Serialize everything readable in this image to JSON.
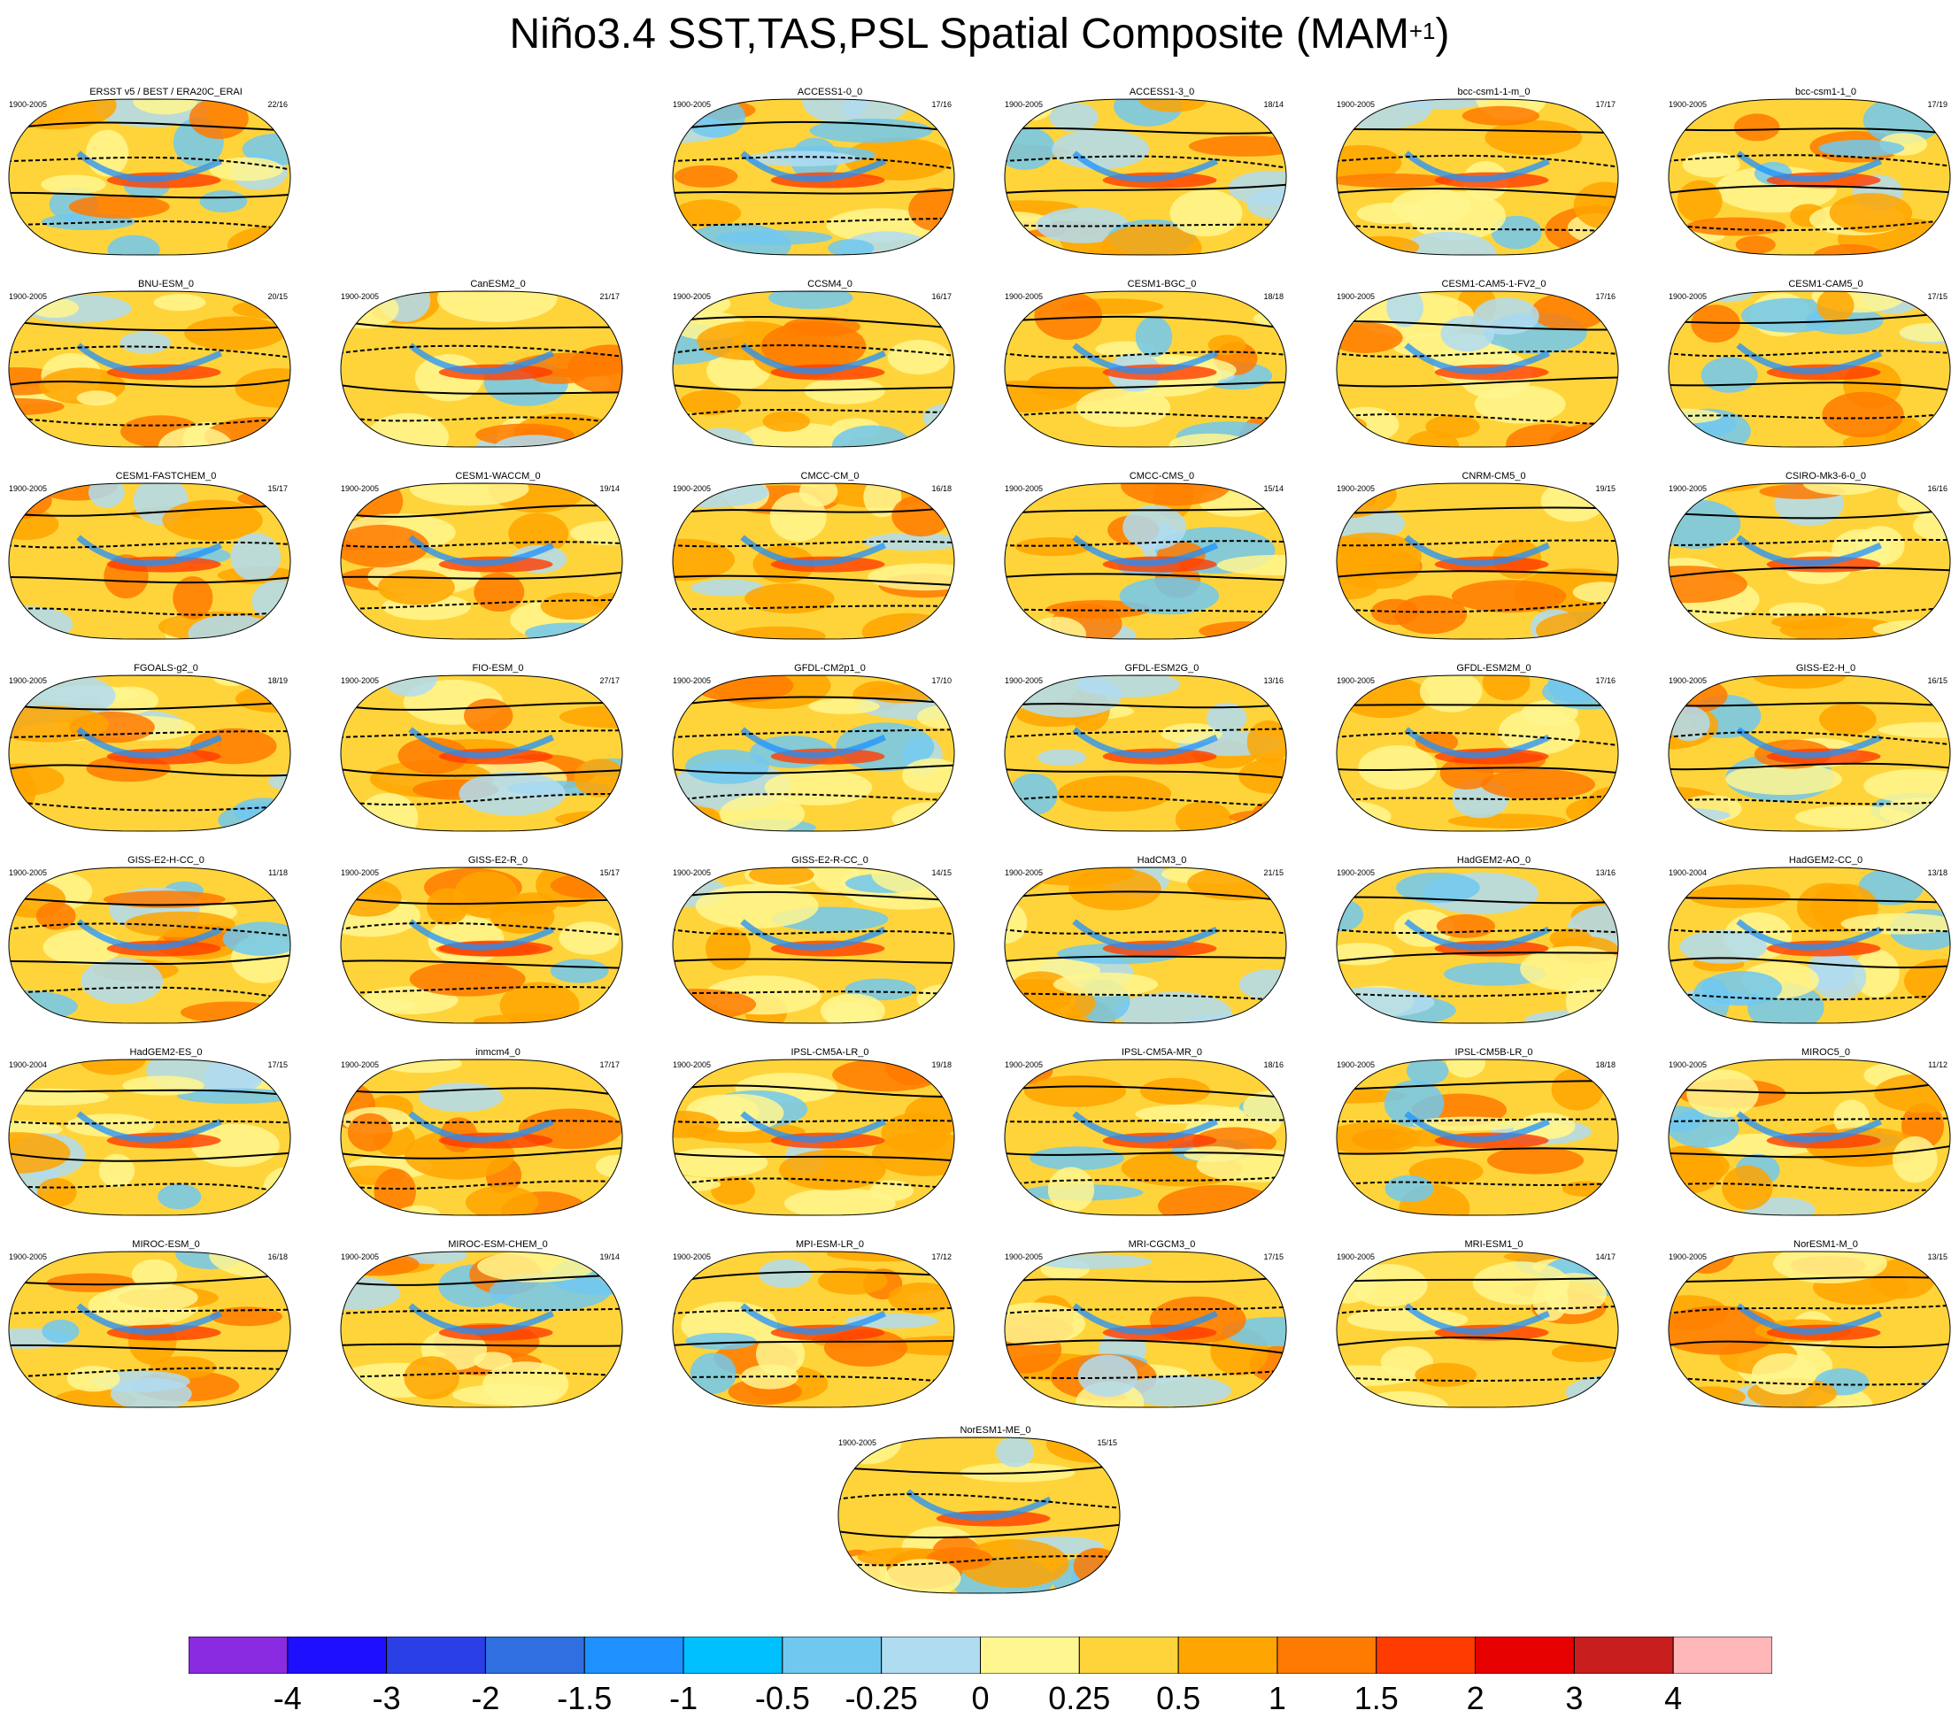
{
  "title": {
    "main": "Niño3.4 SST,TAS,PSL Spatial Composite (MAM",
    "superscript": "+1",
    "close": ")"
  },
  "chart_data": {
    "type": "heatmap",
    "projection": "robinson",
    "panels": [
      {
        "name": "ERSST v5 / BEST / ERA20C_ERAI",
        "period": "1900-2005",
        "ratio": "22/16",
        "row": 0,
        "col": 0
      },
      {
        "name": "ACCESS1-0_0",
        "period": "1900-2005",
        "ratio": "17/16",
        "row": 0,
        "col": 2
      },
      {
        "name": "ACCESS1-3_0",
        "period": "1900-2005",
        "ratio": "18/14",
        "row": 0,
        "col": 3
      },
      {
        "name": "bcc-csm1-1-m_0",
        "period": "1900-2005",
        "ratio": "17/17",
        "row": 0,
        "col": 4
      },
      {
        "name": "bcc-csm1-1_0",
        "period": "1900-2005",
        "ratio": "17/19",
        "row": 0,
        "col": 5
      },
      {
        "name": "BNU-ESM_0",
        "period": "1900-2005",
        "ratio": "20/15",
        "row": 1,
        "col": 0
      },
      {
        "name": "CanESM2_0",
        "period": "1900-2005",
        "ratio": "21/17",
        "row": 1,
        "col": 1
      },
      {
        "name": "CCSM4_0",
        "period": "1900-2005",
        "ratio": "16/17",
        "row": 1,
        "col": 2
      },
      {
        "name": "CESM1-BGC_0",
        "period": "1900-2005",
        "ratio": "18/18",
        "row": 1,
        "col": 3
      },
      {
        "name": "CESM1-CAM5-1-FV2_0",
        "period": "1900-2005",
        "ratio": "17/16",
        "row": 1,
        "col": 4
      },
      {
        "name": "CESM1-CAM5_0",
        "period": "1900-2005",
        "ratio": "17/15",
        "row": 1,
        "col": 5
      },
      {
        "name": "CESM1-FASTCHEM_0",
        "period": "1900-2005",
        "ratio": "15/17",
        "row": 2,
        "col": 0
      },
      {
        "name": "CESM1-WACCM_0",
        "period": "1900-2005",
        "ratio": "19/14",
        "row": 2,
        "col": 1
      },
      {
        "name": "CMCC-CM_0",
        "period": "1900-2005",
        "ratio": "16/18",
        "row": 2,
        "col": 2
      },
      {
        "name": "CMCC-CMS_0",
        "period": "1900-2005",
        "ratio": "15/14",
        "row": 2,
        "col": 3
      },
      {
        "name": "CNRM-CM5_0",
        "period": "1900-2005",
        "ratio": "19/15",
        "row": 2,
        "col": 4
      },
      {
        "name": "CSIRO-Mk3-6-0_0",
        "period": "1900-2005",
        "ratio": "16/16",
        "row": 2,
        "col": 5
      },
      {
        "name": "FGOALS-g2_0",
        "period": "1900-2005",
        "ratio": "18/19",
        "row": 3,
        "col": 0
      },
      {
        "name": "FIO-ESM_0",
        "period": "1900-2005",
        "ratio": "27/17",
        "row": 3,
        "col": 1
      },
      {
        "name": "GFDL-CM2p1_0",
        "period": "1900-2005",
        "ratio": "17/10",
        "row": 3,
        "col": 2
      },
      {
        "name": "GFDL-ESM2G_0",
        "period": "1900-2005",
        "ratio": "13/16",
        "row": 3,
        "col": 3
      },
      {
        "name": "GFDL-ESM2M_0",
        "period": "1900-2005",
        "ratio": "17/16",
        "row": 3,
        "col": 4
      },
      {
        "name": "GISS-E2-H_0",
        "period": "1900-2005",
        "ratio": "16/15",
        "row": 3,
        "col": 5
      },
      {
        "name": "GISS-E2-H-CC_0",
        "period": "1900-2005",
        "ratio": "11/18",
        "row": 4,
        "col": 0
      },
      {
        "name": "GISS-E2-R_0",
        "period": "1900-2005",
        "ratio": "15/17",
        "row": 4,
        "col": 1
      },
      {
        "name": "GISS-E2-R-CC_0",
        "period": "1900-2005",
        "ratio": "14/15",
        "row": 4,
        "col": 2
      },
      {
        "name": "HadCM3_0",
        "period": "1900-2005",
        "ratio": "21/15",
        "row": 4,
        "col": 3
      },
      {
        "name": "HadGEM2-AO_0",
        "period": "1900-2005",
        "ratio": "13/16",
        "row": 4,
        "col": 4
      },
      {
        "name": "HadGEM2-CC_0",
        "period": "1900-2004",
        "ratio": "13/18",
        "row": 4,
        "col": 5
      },
      {
        "name": "HadGEM2-ES_0",
        "period": "1900-2004",
        "ratio": "17/15",
        "row": 5,
        "col": 0
      },
      {
        "name": "inmcm4_0",
        "period": "1900-2005",
        "ratio": "17/17",
        "row": 5,
        "col": 1
      },
      {
        "name": "IPSL-CM5A-LR_0",
        "period": "1900-2005",
        "ratio": "19/18",
        "row": 5,
        "col": 2
      },
      {
        "name": "IPSL-CM5A-MR_0",
        "period": "1900-2005",
        "ratio": "18/16",
        "row": 5,
        "col": 3
      },
      {
        "name": "IPSL-CM5B-LR_0",
        "period": "1900-2005",
        "ratio": "18/18",
        "row": 5,
        "col": 4
      },
      {
        "name": "MIROC5_0",
        "period": "1900-2005",
        "ratio": "11/12",
        "row": 5,
        "col": 5
      },
      {
        "name": "MIROC-ESM_0",
        "period": "1900-2005",
        "ratio": "16/18",
        "row": 6,
        "col": 0
      },
      {
        "name": "MIROC-ESM-CHEM_0",
        "period": "1900-2005",
        "ratio": "19/14",
        "row": 6,
        "col": 1
      },
      {
        "name": "MPI-ESM-LR_0",
        "period": "1900-2005",
        "ratio": "17/12",
        "row": 6,
        "col": 2
      },
      {
        "name": "MRI-CGCM3_0",
        "period": "1900-2005",
        "ratio": "17/15",
        "row": 6,
        "col": 3
      },
      {
        "name": "MRI-ESM1_0",
        "period": "1900-2005",
        "ratio": "14/17",
        "row": 6,
        "col": 4
      },
      {
        "name": "NorESM1-M_0",
        "period": "1900-2005",
        "ratio": "13/15",
        "row": 6,
        "col": 5
      },
      {
        "name": "NorESM1-ME_0",
        "period": "1900-2005",
        "ratio": "15/15",
        "row": 7,
        "col": 2.5
      }
    ],
    "colorbar": {
      "labels": [
        "-4",
        "-3",
        "-2",
        "-1.5",
        "-1",
        "-0.5",
        "-0.25",
        "0",
        "0.25",
        "0.5",
        "1",
        "1.5",
        "2",
        "3",
        "4"
      ],
      "colors": [
        "#8a2be2",
        "#1e10ff",
        "#2b3fe6",
        "#2f6fe0",
        "#1e90ff",
        "#00bfff",
        "#70c8f0",
        "#b0dcf2",
        "#fff68f",
        "#ffd43b",
        "#ffa500",
        "#ff7a00",
        "#ff3c00",
        "#e60000",
        "#c81e1e",
        "#ffb6b9"
      ]
    }
  }
}
